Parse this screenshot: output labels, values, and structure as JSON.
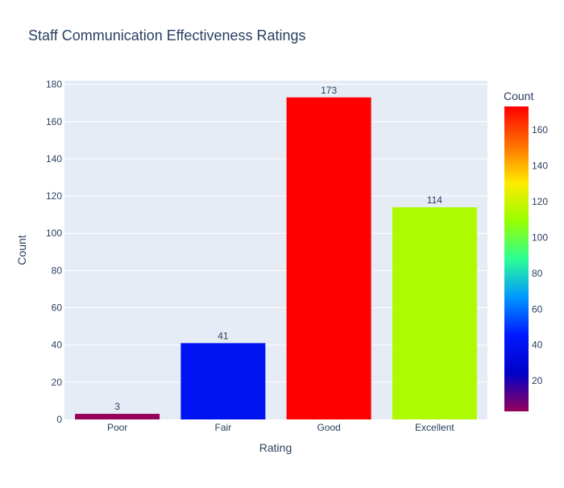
{
  "chart_data": {
    "type": "bar",
    "title": "Staff Communication Effectiveness Ratings",
    "xlabel": "Rating",
    "ylabel": "Count",
    "categories": [
      "Poor",
      "Fair",
      "Good",
      "Excellent"
    ],
    "values": [
      3,
      41,
      173,
      114
    ],
    "data_labels": [
      "3",
      "41",
      "173",
      "114"
    ],
    "ylim": [
      0,
      182
    ],
    "yticks": [
      0,
      20,
      40,
      60,
      80,
      100,
      120,
      140,
      160,
      180
    ],
    "grid": true,
    "colorbar": {
      "title": "Count",
      "range": [
        3,
        173
      ],
      "ticks": [
        20,
        40,
        60,
        80,
        100,
        120,
        140,
        160
      ],
      "colorscale": "rainbow"
    },
    "colors": {
      "plot_bg": "#e5ecf6",
      "grid": "#ffffff",
      "text": "#2a3f5f"
    }
  }
}
